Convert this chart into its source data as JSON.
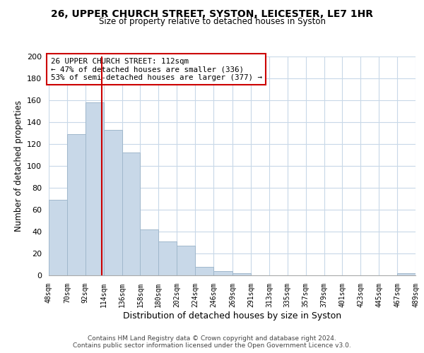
{
  "title": "26, UPPER CHURCH STREET, SYSTON, LEICESTER, LE7 1HR",
  "subtitle": "Size of property relative to detached houses in Syston",
  "xlabel": "Distribution of detached houses by size in Syston",
  "ylabel": "Number of detached properties",
  "bar_edges": [
    48,
    70,
    92,
    114,
    136,
    158,
    180,
    202,
    224,
    246,
    269,
    291,
    313,
    335,
    357,
    379,
    401,
    423,
    445,
    467,
    489
  ],
  "bar_heights": [
    69,
    129,
    158,
    133,
    112,
    42,
    31,
    27,
    8,
    4,
    2,
    0,
    0,
    0,
    0,
    0,
    0,
    0,
    0,
    2
  ],
  "bar_color": "#c8d8e8",
  "bar_edgecolor": "#a0b8cc",
  "vline_x": 112,
  "vline_color": "#cc0000",
  "annotation_line1": "26 UPPER CHURCH STREET: 112sqm",
  "annotation_line2": "← 47% of detached houses are smaller (336)",
  "annotation_line3": "53% of semi-detached houses are larger (377) →",
  "annotation_box_edgecolor": "#cc0000",
  "annotation_box_facecolor": "white",
  "ylim": [
    0,
    200
  ],
  "yticks": [
    0,
    20,
    40,
    60,
    80,
    100,
    120,
    140,
    160,
    180,
    200
  ],
  "xtick_labels": [
    "48sqm",
    "70sqm",
    "92sqm",
    "114sqm",
    "136sqm",
    "158sqm",
    "180sqm",
    "202sqm",
    "224sqm",
    "246sqm",
    "269sqm",
    "291sqm",
    "313sqm",
    "335sqm",
    "357sqm",
    "379sqm",
    "401sqm",
    "423sqm",
    "445sqm",
    "467sqm",
    "489sqm"
  ],
  "footer_line1": "Contains HM Land Registry data © Crown copyright and database right 2024.",
  "footer_line2": "Contains public sector information licensed under the Open Government Licence v3.0.",
  "background_color": "#ffffff",
  "grid_color": "#c8d8e8"
}
